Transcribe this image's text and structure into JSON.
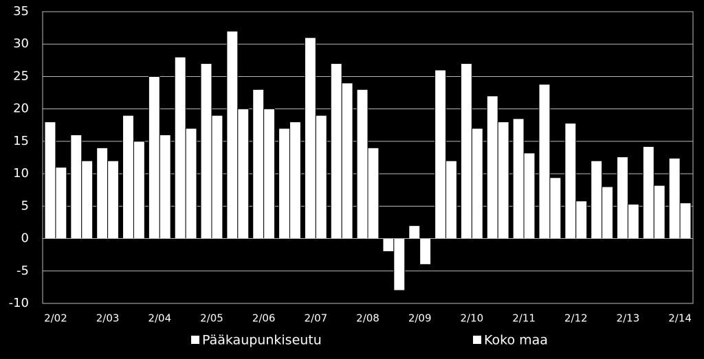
{
  "chart_data": {
    "type": "bar",
    "categories": [
      "2/02",
      null,
      "2/03",
      null,
      "2/04",
      null,
      "2/05",
      null,
      "2/06",
      null,
      "2/07",
      null,
      "2/08",
      null,
      "2/09",
      null,
      "2/10",
      null,
      "2/11",
      null,
      "2/12",
      null,
      "2/13",
      null,
      "2/14"
    ],
    "series": [
      {
        "name": "Pääkaupunkiseutu",
        "color": "#ffffff",
        "values": [
          18,
          16,
          14,
          19,
          25,
          28,
          27,
          32,
          23,
          17,
          31,
          27,
          23,
          -2,
          2,
          26,
          27,
          22,
          18.5,
          23.8,
          17.8,
          12,
          12.6,
          14.2,
          12.4
        ]
      },
      {
        "name": "Koko maa",
        "color": "#ffffff",
        "values": [
          11,
          12,
          12,
          15,
          16,
          17,
          19,
          20,
          20,
          18,
          19,
          24,
          14,
          -8,
          -4,
          12,
          17,
          18,
          13.2,
          9.4,
          5.8,
          8,
          5.3,
          8.2,
          5.5
        ]
      }
    ],
    "ylim": [
      -10,
      35
    ],
    "yticks": [
      -10,
      -5,
      0,
      5,
      10,
      15,
      20,
      25,
      30,
      35
    ],
    "grid": true,
    "legend": "bottom"
  }
}
